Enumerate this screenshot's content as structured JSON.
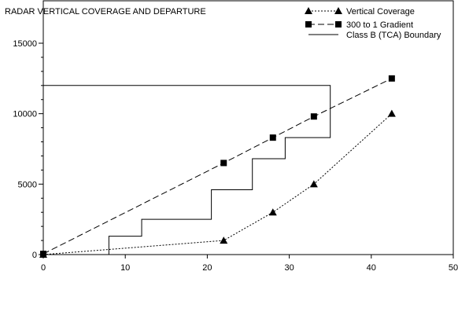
{
  "chart_data": {
    "type": "line",
    "title": "RADAR VERTICAL COVERAGE AND DEPARTURE",
    "xlabel": "",
    "ylabel": "",
    "xlim": [
      0,
      50
    ],
    "ylim": [
      0,
      15000
    ],
    "x_ticks": [
      "0",
      "10",
      "20",
      "30",
      "40",
      "50"
    ],
    "y_ticks": [
      "0",
      "5000",
      "10000",
      "15000"
    ],
    "x_tick_values": [
      0,
      10,
      20,
      30,
      40,
      50
    ],
    "y_tick_values": [
      0,
      5000,
      10000,
      15000
    ],
    "y_minor_step": 1000,
    "grid": false,
    "legend_position": "top-right",
    "series": [
      {
        "name": "Vertical Coverage",
        "style": "dotted",
        "marker": "triangle",
        "x": [
          0,
          22,
          28,
          33,
          42.5
        ],
        "y": [
          0,
          1000,
          3000,
          5000,
          10000
        ]
      },
      {
        "name": "300 to 1 Gradient",
        "style": "dashed",
        "marker": "square",
        "x": [
          0,
          22,
          28,
          33,
          42.5
        ],
        "y": [
          50,
          6500,
          8300,
          9800,
          12500
        ]
      },
      {
        "name": "Class B (TCA) Boundary",
        "style": "solid",
        "marker": "none",
        "x": [
          0,
          35,
          35,
          29.5,
          29.5,
          25.5,
          25.5,
          20.5,
          20.5,
          12,
          12,
          8,
          8
        ],
        "y": [
          12000,
          12000,
          8300,
          8300,
          6800,
          6800,
          4600,
          4600,
          2500,
          2500,
          1300,
          1300,
          0
        ]
      }
    ],
    "colors": {
      "line": "#000000",
      "background": "#ffffff"
    }
  }
}
